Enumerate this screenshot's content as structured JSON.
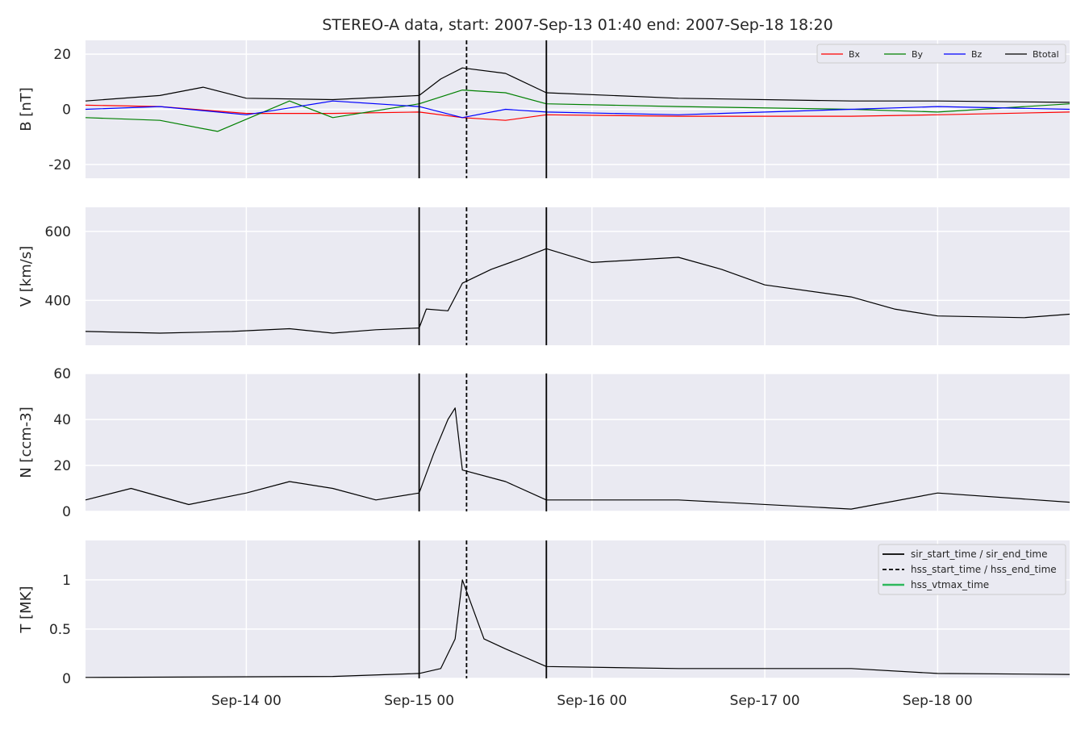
{
  "chart_data": {
    "type": "line",
    "title": "STEREO-A data, start: 2007-Sep-13 01:40  end: 2007-Sep-18 18:20",
    "x_range": [
      "2007-09-13T01:40",
      "2007-09-18T18:20"
    ],
    "x_tick_labels": [
      "Sep-14 00",
      "Sep-15 00",
      "Sep-16 00",
      "Sep-17 00",
      "Sep-18 00"
    ],
    "x_tick_values": [
      "2007-09-14T00:00",
      "2007-09-15T00:00",
      "2007-09-16T00:00",
      "2007-09-17T00:00",
      "2007-09-18T00:00"
    ],
    "grid": true,
    "event_markers": {
      "sir_start_time": "2007-09-15T00:00",
      "hss_start_time": "2007-09-15T06:35",
      "sir_end_time": "2007-09-15T17:40"
    },
    "panels": [
      {
        "ylabel": "B [nT]",
        "ylim": [
          -25,
          25
        ],
        "yticks": [
          -20,
          0,
          20
        ],
        "legend_position": "top-right",
        "series": [
          {
            "name": "Bx",
            "color": "#ff0000",
            "points": [
              [
                "2007-09-13T01:40",
                1.5
              ],
              [
                "2007-09-13T12:00",
                1
              ],
              [
                "2007-09-14T00:00",
                -1.5
              ],
              [
                "2007-09-14T12:00",
                -1.5
              ],
              [
                "2007-09-15T00:00",
                -1
              ],
              [
                "2007-09-15T06:00",
                -3
              ],
              [
                "2007-09-15T12:00",
                -4
              ],
              [
                "2007-09-15T17:40",
                -2
              ],
              [
                "2007-09-16T12:00",
                -2.5
              ],
              [
                "2007-09-17T12:00",
                -2.5
              ],
              [
                "2007-09-18T00:00",
                -2
              ],
              [
                "2007-09-18T18:20",
                -1
              ]
            ]
          },
          {
            "name": "By",
            "color": "#008000",
            "points": [
              [
                "2007-09-13T01:40",
                -3
              ],
              [
                "2007-09-13T12:00",
                -4
              ],
              [
                "2007-09-13T20:00",
                -8
              ],
              [
                "2007-09-14T06:00",
                3
              ],
              [
                "2007-09-14T12:00",
                -3
              ],
              [
                "2007-09-15T00:00",
                2
              ],
              [
                "2007-09-15T06:00",
                7
              ],
              [
                "2007-09-15T12:00",
                6
              ],
              [
                "2007-09-15T17:40",
                2
              ],
              [
                "2007-09-16T12:00",
                1
              ],
              [
                "2007-09-17T12:00",
                0
              ],
              [
                "2007-09-18T00:00",
                -1
              ],
              [
                "2007-09-18T18:20",
                2
              ]
            ]
          },
          {
            "name": "Bz",
            "color": "#0000ff",
            "points": [
              [
                "2007-09-13T01:40",
                0
              ],
              [
                "2007-09-13T12:00",
                1
              ],
              [
                "2007-09-14T00:00",
                -2
              ],
              [
                "2007-09-14T12:00",
                3
              ],
              [
                "2007-09-15T00:00",
                1
              ],
              [
                "2007-09-15T06:00",
                -3
              ],
              [
                "2007-09-15T12:00",
                0
              ],
              [
                "2007-09-15T17:40",
                -1
              ],
              [
                "2007-09-16T12:00",
                -2
              ],
              [
                "2007-09-17T12:00",
                0
              ],
              [
                "2007-09-18T00:00",
                1
              ],
              [
                "2007-09-18T18:20",
                0
              ]
            ]
          },
          {
            "name": "Btotal",
            "color": "#000000",
            "points": [
              [
                "2007-09-13T01:40",
                3
              ],
              [
                "2007-09-13T12:00",
                5
              ],
              [
                "2007-09-13T18:00",
                8
              ],
              [
                "2007-09-14T00:00",
                4
              ],
              [
                "2007-09-14T12:00",
                3.5
              ],
              [
                "2007-09-15T00:00",
                5
              ],
              [
                "2007-09-15T03:00",
                11
              ],
              [
                "2007-09-15T06:00",
                15
              ],
              [
                "2007-09-15T12:00",
                13
              ],
              [
                "2007-09-15T17:40",
                6
              ],
              [
                "2007-09-16T12:00",
                4
              ],
              [
                "2007-09-17T12:00",
                3
              ],
              [
                "2007-09-18T00:00",
                3
              ],
              [
                "2007-09-18T18:20",
                2.5
              ]
            ]
          }
        ]
      },
      {
        "ylabel": "V [km/s]",
        "ylim": [
          270,
          670
        ],
        "yticks": [
          400,
          600
        ],
        "series": [
          {
            "name": "V",
            "color": "#000000",
            "points": [
              [
                "2007-09-13T01:40",
                310
              ],
              [
                "2007-09-13T12:00",
                305
              ],
              [
                "2007-09-13T22:00",
                310
              ],
              [
                "2007-09-14T06:00",
                318
              ],
              [
                "2007-09-14T12:00",
                305
              ],
              [
                "2007-09-14T18:00",
                315
              ],
              [
                "2007-09-15T00:00",
                320
              ],
              [
                "2007-09-15T01:00",
                375
              ],
              [
                "2007-09-15T04:00",
                370
              ],
              [
                "2007-09-15T06:00",
                450
              ],
              [
                "2007-09-15T10:00",
                490
              ],
              [
                "2007-09-15T14:00",
                520
              ],
              [
                "2007-09-15T17:40",
                550
              ],
              [
                "2007-09-16T00:00",
                510
              ],
              [
                "2007-09-16T12:00",
                525
              ],
              [
                "2007-09-16T18:00",
                490
              ],
              [
                "2007-09-17T00:00",
                445
              ],
              [
                "2007-09-17T12:00",
                410
              ],
              [
                "2007-09-17T18:00",
                375
              ],
              [
                "2007-09-18T00:00",
                355
              ],
              [
                "2007-09-18T12:00",
                350
              ],
              [
                "2007-09-18T18:20",
                360
              ]
            ]
          }
        ]
      },
      {
        "ylabel": "N [ccm-3]",
        "ylim": [
          0,
          60
        ],
        "yticks": [
          0,
          20,
          40,
          60
        ],
        "series": [
          {
            "name": "N",
            "color": "#000000",
            "points": [
              [
                "2007-09-13T01:40",
                5
              ],
              [
                "2007-09-13T08:00",
                10
              ],
              [
                "2007-09-13T16:00",
                3
              ],
              [
                "2007-09-14T00:00",
                8
              ],
              [
                "2007-09-14T06:00",
                13
              ],
              [
                "2007-09-14T12:00",
                10
              ],
              [
                "2007-09-14T18:00",
                5
              ],
              [
                "2007-09-15T00:00",
                8
              ],
              [
                "2007-09-15T02:00",
                25
              ],
              [
                "2007-09-15T04:00",
                40
              ],
              [
                "2007-09-15T05:00",
                45
              ],
              [
                "2007-09-15T06:00",
                18
              ],
              [
                "2007-09-15T12:00",
                13
              ],
              [
                "2007-09-15T17:40",
                5
              ],
              [
                "2007-09-16T12:00",
                5
              ],
              [
                "2007-09-17T12:00",
                1
              ],
              [
                "2007-09-18T00:00",
                8
              ],
              [
                "2007-09-18T18:20",
                4
              ]
            ]
          }
        ]
      },
      {
        "ylabel": "T [MK]",
        "ylim": [
          0,
          1.4
        ],
        "yticks": [
          0.0,
          0.5,
          1.0
        ],
        "legend_position": "top-right",
        "legend_entries": [
          {
            "name": "sir_start_time / sir_end_time",
            "color": "#000000",
            "style": "solid"
          },
          {
            "name": "hss_start_time / hss_end_time",
            "color": "#000000",
            "style": "dashed"
          },
          {
            "name": "hss_vtmax_time",
            "color": "#2eb85c",
            "style": "solid"
          }
        ],
        "series": [
          {
            "name": "T",
            "color": "#000000",
            "points": [
              [
                "2007-09-13T01:40",
                0.01
              ],
              [
                "2007-09-14T12:00",
                0.02
              ],
              [
                "2007-09-15T00:00",
                0.05
              ],
              [
                "2007-09-15T03:00",
                0.1
              ],
              [
                "2007-09-15T05:00",
                0.4
              ],
              [
                "2007-09-15T06:00",
                1.0
              ],
              [
                "2007-09-15T09:00",
                0.4
              ],
              [
                "2007-09-15T12:00",
                0.3
              ],
              [
                "2007-09-15T17:40",
                0.12
              ],
              [
                "2007-09-16T12:00",
                0.1
              ],
              [
                "2007-09-17T12:00",
                0.1
              ],
              [
                "2007-09-18T00:00",
                0.05
              ],
              [
                "2007-09-18T18:20",
                0.04
              ]
            ]
          }
        ]
      }
    ]
  }
}
